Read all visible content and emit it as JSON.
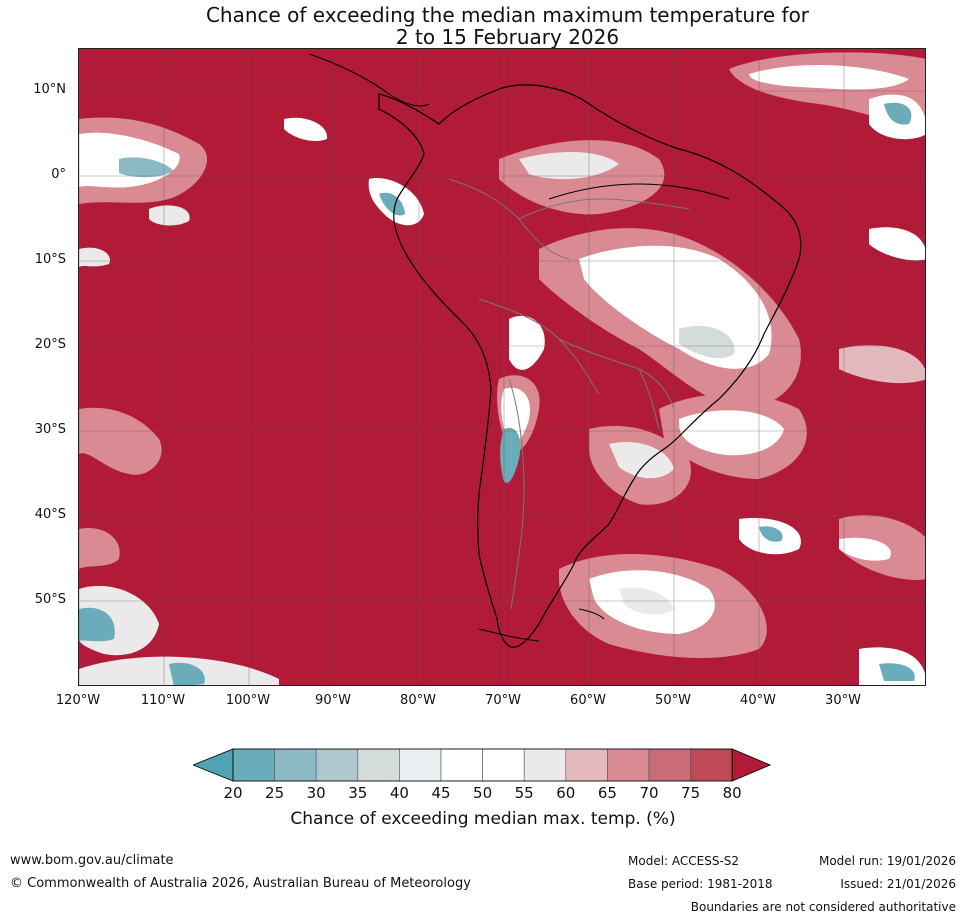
{
  "title": {
    "line1": "Chance of exceeding the median maximum temperature for",
    "line2": "2 to 15 February 2026"
  },
  "map": {
    "lat_labels": [
      "10°N",
      "0°",
      "10°S",
      "20°S",
      "30°S",
      "40°S",
      "50°S"
    ],
    "lon_labels": [
      "120°W",
      "110°W",
      "100°W",
      "90°W",
      "80°W",
      "70°W",
      "60°W",
      "50°W",
      "40°W",
      "30°W"
    ],
    "colors": {
      "high": "#b11b38",
      "upper_mid": "#c74f5d",
      "mid_high": "#d98a92",
      "neutral": "#ffffff",
      "neutral_grey": "#ebebed",
      "low": "#6aacb9"
    }
  },
  "colorbar": {
    "ticks": [
      "20",
      "25",
      "30",
      "35",
      "40",
      "45",
      "50",
      "55",
      "60",
      "65",
      "70",
      "75",
      "80"
    ],
    "colors": [
      "#4fa3b3",
      "#6aacb9",
      "#8bb9c6",
      "#afc8cd",
      "#d3dbdb",
      "#eaf0f2",
      "#ffffff",
      "#ffffff",
      "#ebe9ea",
      "#e3b9be",
      "#d98a92",
      "#c96c77",
      "#bf4a57",
      "#b11b38"
    ],
    "label": "Chance of exceeding median max. temp. (%)"
  },
  "footer": {
    "url": "www.bom.gov.au/climate",
    "copyright": "© Commonwealth of Australia 2026, Australian Bureau of Meteorology",
    "model": "Model: ACCESS-S2",
    "base_period": "Base period: 1981-2018",
    "model_run": "Model run: 19/01/2026",
    "issued": "Issued: 21/01/2026",
    "boundaries": "Boundaries are not considered authoritative"
  }
}
